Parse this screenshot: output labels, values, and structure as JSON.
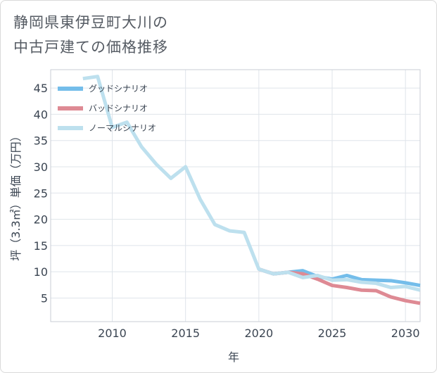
{
  "title_line1": "静岡県東伊豆町大川の",
  "title_line2": "中古戸建ての価格推移",
  "chart_data": {
    "type": "line",
    "xlabel": "年",
    "ylabel": "坪（3.3㎡）単価（万円）",
    "xlim": [
      2005.8,
      2031
    ],
    "ylim": [
      0.5,
      48.5
    ],
    "x_ticks": [
      2010,
      2015,
      2020,
      2025,
      2030
    ],
    "y_ticks": [
      5,
      10,
      15,
      20,
      25,
      30,
      35,
      40,
      45
    ],
    "legend_position": "top-left",
    "series": [
      {
        "name": "グッドシナリオ",
        "color": "#74bdea",
        "x": [
          2020,
          2021,
          2022,
          2023,
          2024,
          2025,
          2026,
          2027,
          2028,
          2029,
          2030,
          2031
        ],
        "y": [
          10.5,
          9.6,
          9.9,
          10.2,
          9.1,
          8.6,
          9.3,
          8.5,
          8.4,
          8.3,
          7.9,
          7.4
        ]
      },
      {
        "name": "バッドシナリオ",
        "color": "#de8a94",
        "x": [
          2020,
          2021,
          2022,
          2023,
          2024,
          2025,
          2026,
          2027,
          2028,
          2029,
          2030,
          2031
        ],
        "y": [
          10.5,
          9.6,
          9.9,
          9.6,
          8.6,
          7.4,
          7.0,
          6.5,
          6.4,
          5.2,
          4.5,
          4.0
        ]
      },
      {
        "name": "ノーマルシナリオ",
        "color": "#bde0ee",
        "x": [
          2008,
          2009,
          2010,
          2011,
          2012,
          2013,
          2014,
          2015,
          2016,
          2017,
          2018,
          2019,
          2020,
          2021,
          2022,
          2023,
          2024,
          2025,
          2026,
          2027,
          2028,
          2029,
          2030,
          2031
        ],
        "y": [
          46.8,
          47.2,
          37.5,
          38.5,
          33.8,
          30.5,
          27.8,
          30.0,
          23.8,
          19.0,
          17.8,
          17.5,
          10.5,
          9.6,
          9.9,
          8.9,
          9.3,
          8.4,
          8.5,
          8.0,
          7.8,
          7.0,
          7.2,
          6.5
        ]
      }
    ]
  }
}
